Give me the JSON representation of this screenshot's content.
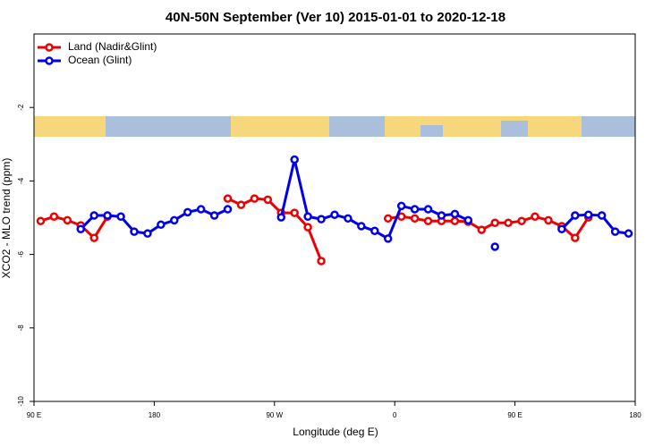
{
  "chart_data": {
    "type": "line",
    "title": "40N-50N September (Ver 10)   2015-01-01 to 2020-12-18",
    "x_label": "Longitude (deg E)",
    "y_label": "XCO2 - MLO trend (ppm)",
    "x": [
      95,
      105,
      115,
      125,
      135,
      145,
      155,
      165,
      175,
      185,
      195,
      205,
      215,
      225,
      235,
      245,
      255,
      265,
      275,
      285,
      295,
      305,
      315,
      325,
      335,
      345,
      355,
      365,
      375,
      385,
      395,
      405,
      415,
      425,
      435,
      445,
      455,
      465,
      475,
      485,
      495,
      505,
      515,
      525,
      535
    ],
    "series": [
      {
        "name": "Land (Nadir&Glint)",
        "color": "#ee0000",
        "values": [
          -5.09,
          -4.97,
          -5.07,
          -5.21,
          -5.55,
          -4.97,
          null,
          null,
          null,
          null,
          null,
          null,
          null,
          null,
          -4.48,
          -4.65,
          -4.48,
          -4.51,
          -4.87,
          -4.87,
          -5.26,
          -6.18,
          null,
          null,
          null,
          null,
          -5.02,
          -4.97,
          -5.02,
          -5.09,
          -5.09,
          -5.09,
          -5.11,
          -5.33,
          -5.14,
          -5.14,
          -5.09,
          -4.97,
          -5.07,
          -5.23,
          -5.55,
          -4.99,
          null,
          null,
          null
        ]
      },
      {
        "name": "Ocean (Glint)",
        "color": "#0000ee",
        "values": [
          null,
          null,
          null,
          -5.31,
          -4.94,
          -4.94,
          -4.97,
          -5.38,
          -5.43,
          -5.19,
          -5.07,
          -4.85,
          -4.77,
          -4.94,
          -4.77,
          null,
          null,
          null,
          -4.99,
          -3.42,
          -4.97,
          -5.04,
          -4.92,
          -5.02,
          -5.23,
          -5.36,
          -5.57,
          -4.68,
          -4.77,
          -4.77,
          -4.94,
          -4.9,
          -5.07,
          null,
          -5.79,
          null,
          null,
          null,
          null,
          -5.31,
          -4.94,
          -4.92,
          -4.94,
          -5.38,
          -5.43
        ]
      }
    ],
    "xlim": [
      90,
      540
    ],
    "xticks": [
      {
        "value": 90,
        "label": "90 E"
      },
      180,
      {
        "value": 270,
        "label": "90 W"
      },
      {
        "value": 360,
        "label": "0"
      },
      {
        "value": 450,
        "label": "90 E"
      },
      {
        "value": 540,
        "label": "180"
      }
    ],
    "ylim": [
      -10,
      0
    ],
    "yticks": [
      -10,
      -8,
      -6,
      -4,
      -2
    ],
    "legend_position": "top-left"
  }
}
